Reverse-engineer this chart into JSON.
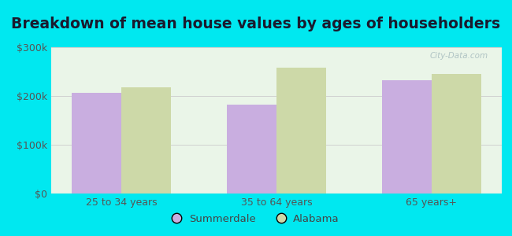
{
  "title": "Breakdown of mean house values by ages of householders",
  "categories": [
    "25 to 34 years",
    "35 to 64 years",
    "65 years+"
  ],
  "summerdale_values": [
    207000,
    183000,
    232000
  ],
  "alabama_values": [
    218000,
    258000,
    245000
  ],
  "summerdale_color": "#c9aee0",
  "alabama_color": "#cdd9a8",
  "background_outer": "#00e8f0",
  "background_inner": "#eaf5e8",
  "ylim": [
    0,
    300000
  ],
  "yticks": [
    0,
    100000,
    200000,
    300000
  ],
  "ytick_labels": [
    "$0",
    "$100k",
    "$200k",
    "$300k"
  ],
  "legend_labels": [
    "Summerdale",
    "Alabama"
  ],
  "bar_width": 0.32,
  "title_fontsize": 13.5,
  "tick_fontsize": 9,
  "legend_fontsize": 9.5
}
